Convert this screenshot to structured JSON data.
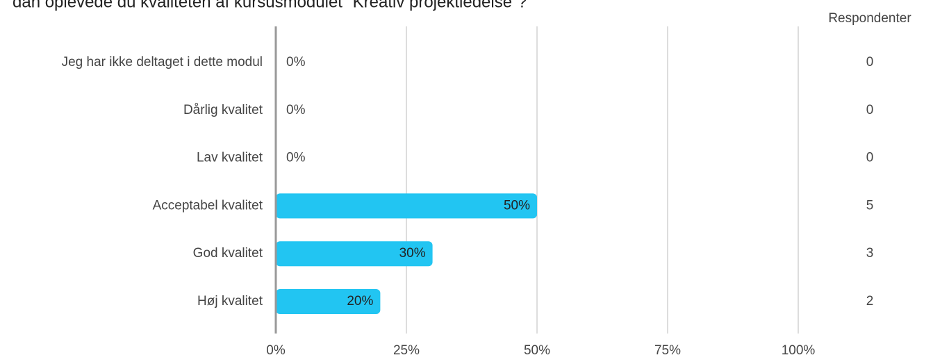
{
  "chart_data": {
    "type": "bar",
    "orientation": "horizontal",
    "title": "dan oplevede du kvaliteten af kursusmodulet “Kreativ projektledelse”?",
    "categories": [
      "Jeg har ikke deltaget i dette modul",
      "Dårlig kvalitet",
      "Lav kvalitet",
      "Acceptabel kvalitet",
      "God kvalitet",
      "Høj kvalitet"
    ],
    "values": [
      0,
      0,
      0,
      50,
      30,
      20
    ],
    "value_labels": [
      "0%",
      "0%",
      "0%",
      "50%",
      "30%",
      "20%"
    ],
    "color": "#22c5f2",
    "respondents_label": "Respondenter",
    "respondents": [
      0,
      0,
      0,
      5,
      3,
      2
    ],
    "xlim": [
      0,
      100
    ],
    "xticks": [
      {
        "value": 0,
        "label": "0%"
      },
      {
        "value": 25,
        "label": "25%"
      },
      {
        "value": 50,
        "label": "50%"
      },
      {
        "value": 75,
        "label": "75%"
      },
      {
        "value": 100,
        "label": "100%"
      }
    ],
    "grid": true
  }
}
